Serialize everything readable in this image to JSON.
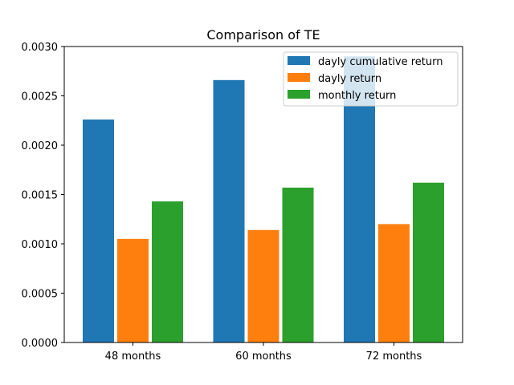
{
  "chart_data": {
    "type": "bar",
    "title": "Comparison of TE",
    "xlabel": "",
    "ylabel": "",
    "categories": [
      "48 months",
      "60 months",
      "72 months"
    ],
    "series": [
      {
        "name": "dayly cumulative return",
        "color": "#1f77b4",
        "values": [
          0.00226,
          0.00266,
          0.0029
        ]
      },
      {
        "name": "dayly return",
        "color": "#ff7f0e",
        "values": [
          0.00105,
          0.00114,
          0.0012
        ]
      },
      {
        "name": "monthly return",
        "color": "#2ca02c",
        "values": [
          0.00143,
          0.00157,
          0.00162
        ]
      }
    ],
    "ylim": [
      0,
      0.003
    ],
    "yticks": [
      "0.0000",
      "0.0005",
      "0.0010",
      "0.0015",
      "0.0020",
      "0.0025",
      "0.0030"
    ],
    "grid": false,
    "legend_position": "upper right"
  }
}
